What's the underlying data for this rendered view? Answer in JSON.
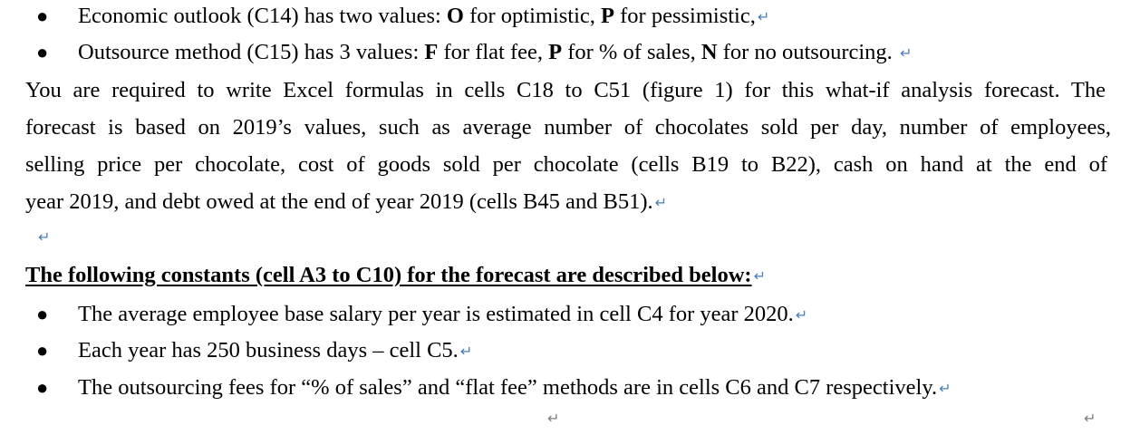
{
  "bullets_top": [
    {
      "parts": [
        "Economic outlook (C14) has two values: ",
        "O",
        " for optimistic, ",
        "P",
        " for pessimistic,"
      ]
    },
    {
      "parts": [
        "Outsource method (C15) has 3 values: ",
        "F",
        " for flat fee, ",
        "P",
        " for % of sales, ",
        "N",
        " for no outsourcing.  "
      ]
    }
  ],
  "paragraph_lines": [
    "You are required to write Excel formulas in cells C18 to C51 (figure 1) for this what-if analysis forecast. The",
    "forecast is based on 2019’s values, such as average number of chocolates sold per day, number of employees,",
    "selling price per chocolate, cost of goods sold per chocolate (cells B19 to B22), cash on hand at the end of",
    "year 2019, and debt owed at the end of year 2019 (cells B45 and B51)."
  ],
  "heading": "The following constants (cell A3 to C10) for the forecast are described below:",
  "bullets_bottom": [
    "The average employee base salary per year is estimated in cell C4 for year 2020.",
    "Each year has 250 business days – cell C5.",
    "The outsourcing fees for “% of sales” and “flat fee” methods are in cells C6 and C7 respectively."
  ],
  "bullet_symbol": "●",
  "paragraph_mark": "↵",
  "colors": {
    "text": "#000000",
    "formatting_mark": "#4a7ebb",
    "formatting_mark_grey": "#7f7f7f"
  }
}
